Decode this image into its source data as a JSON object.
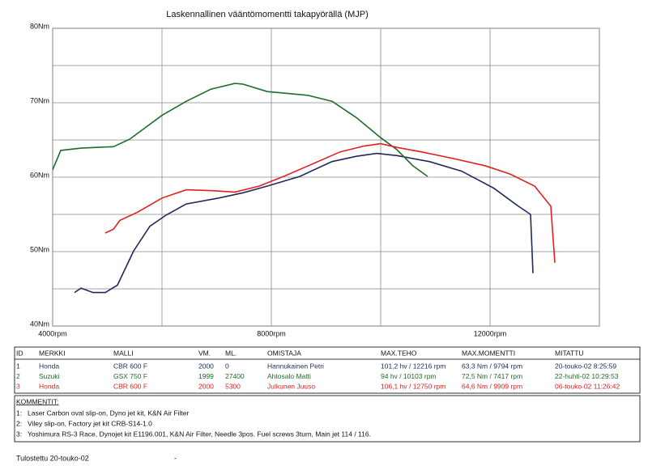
{
  "chart_data": {
    "type": "line",
    "title": "Laskennallinen vääntömomentti takapyörällä (MJP)",
    "xlim": [
      4000,
      14000
    ],
    "xticks": [
      {
        "value": 4000,
        "label": "4000rpm"
      },
      {
        "value": 8000,
        "label": "8000rpm"
      },
      {
        "value": 12000,
        "label": "12000rpm"
      }
    ],
    "xminor": [
      6000,
      10000,
      14000
    ],
    "ylim": [
      40,
      80
    ],
    "yticks": [
      {
        "value": 40,
        "label": "40Nm"
      },
      {
        "value": 50,
        "label": "50Nm"
      },
      {
        "value": 60,
        "label": "60Nm"
      },
      {
        "value": 70,
        "label": "70Nm"
      },
      {
        "value": 80,
        "label": "80Nm"
      }
    ],
    "yminor": [
      45,
      55,
      65,
      75
    ],
    "grid": true,
    "series": [
      {
        "color": "#1e2a5a",
        "x": [
          4400,
          4519,
          4741,
          4963,
          5185,
          5481,
          5778,
          6074,
          6444,
          7037,
          7481,
          7926,
          8519,
          9111,
          9556,
          9926,
          10296,
          10889,
          11481,
          12074,
          12519,
          12741,
          12785
        ],
        "values": [
          44.5,
          45.1,
          44.5,
          44.5,
          45.5,
          50.1,
          53.4,
          54.9,
          56.4,
          57.2,
          57.9,
          58.8,
          60.1,
          62.1,
          62.8,
          63.2,
          62.9,
          62.1,
          60.8,
          58.5,
          56.1,
          55.0,
          47.1
        ]
      },
      {
        "color": "#1f6b2a",
        "x": [
          4000,
          4148,
          4519,
          5111,
          5407,
          6000,
          6444,
          6889,
          7333,
          7481,
          7926,
          8667,
          9111,
          9556,
          10000,
          10296,
          10593,
          10859
        ],
        "values": [
          61.0,
          63.6,
          63.9,
          64.1,
          65.1,
          68.3,
          70.2,
          71.8,
          72.6,
          72.5,
          71.5,
          71.0,
          70.2,
          68.0,
          65.3,
          63.7,
          61.5,
          60.1
        ]
      },
      {
        "color": "#e02020",
        "x": [
          4963,
          5111,
          5230,
          5556,
          6000,
          6444,
          6889,
          7333,
          7778,
          8222,
          8667,
          9259,
          9704,
          10000,
          10296,
          10741,
          11333,
          11926,
          12370,
          12815,
          13111,
          13185
        ],
        "values": [
          52.5,
          53.0,
          54.2,
          55.3,
          57.2,
          58.3,
          58.2,
          58.0,
          58.8,
          60.1,
          61.5,
          63.4,
          64.2,
          64.5,
          64.0,
          63.4,
          62.5,
          61.5,
          60.4,
          58.8,
          56.1,
          48.5
        ]
      }
    ]
  },
  "table": {
    "header": [
      "ID",
      "MERKKI",
      "MALLI",
      "VM.",
      "ML.",
      "OMISTAJA",
      "MAX.TEHO",
      "MAX.MOMENTTI",
      "MITATTU"
    ],
    "rows": [
      [
        "1",
        "Honda",
        "CBR 600 F",
        "2000",
        "0",
        "Hannukainen Petri",
        "101,2 hv / 12216 rpm",
        "63,3 Nm / 9794 rpm",
        "20-touko-02 8:25:59"
      ],
      [
        "2",
        "Suzuki",
        "GSX 750 F",
        "1999",
        "27400",
        "Ahtosalo Matti",
        "94 hv / 10103 rpm",
        "72,5 Nm / 7417 rpm",
        "22-huhti-02 10:29:53"
      ],
      [
        "3",
        "Honda",
        "CBR 600 F",
        "2000",
        "5300",
        "Julkunen Juuso",
        "106,1 hv / 12750 rpm",
        "64,6 Nm / 9909 rpm",
        "06-touko-02 11:26:42"
      ]
    ]
  },
  "comments": {
    "title": "KOMMENTIT:",
    "items": [
      {
        "num": "1:",
        "text": "Laser Carbon oval slip-on, Dyno jet kit, K&N Air Filter"
      },
      {
        "num": "2:",
        "text": "Viley slip-on, Factory jet kit CRB-S14-1.0"
      },
      {
        "num": "3:",
        "text": "Yoshimura RS-3 Race, Dynojet kit E1196.001, K&N Air Filter, Needle 3pos. Fuel screws 3turn, Main jet 114 / 116."
      }
    ]
  },
  "footer": {
    "printed": "Tulostettu 20-touko-02",
    "mark": "-"
  }
}
